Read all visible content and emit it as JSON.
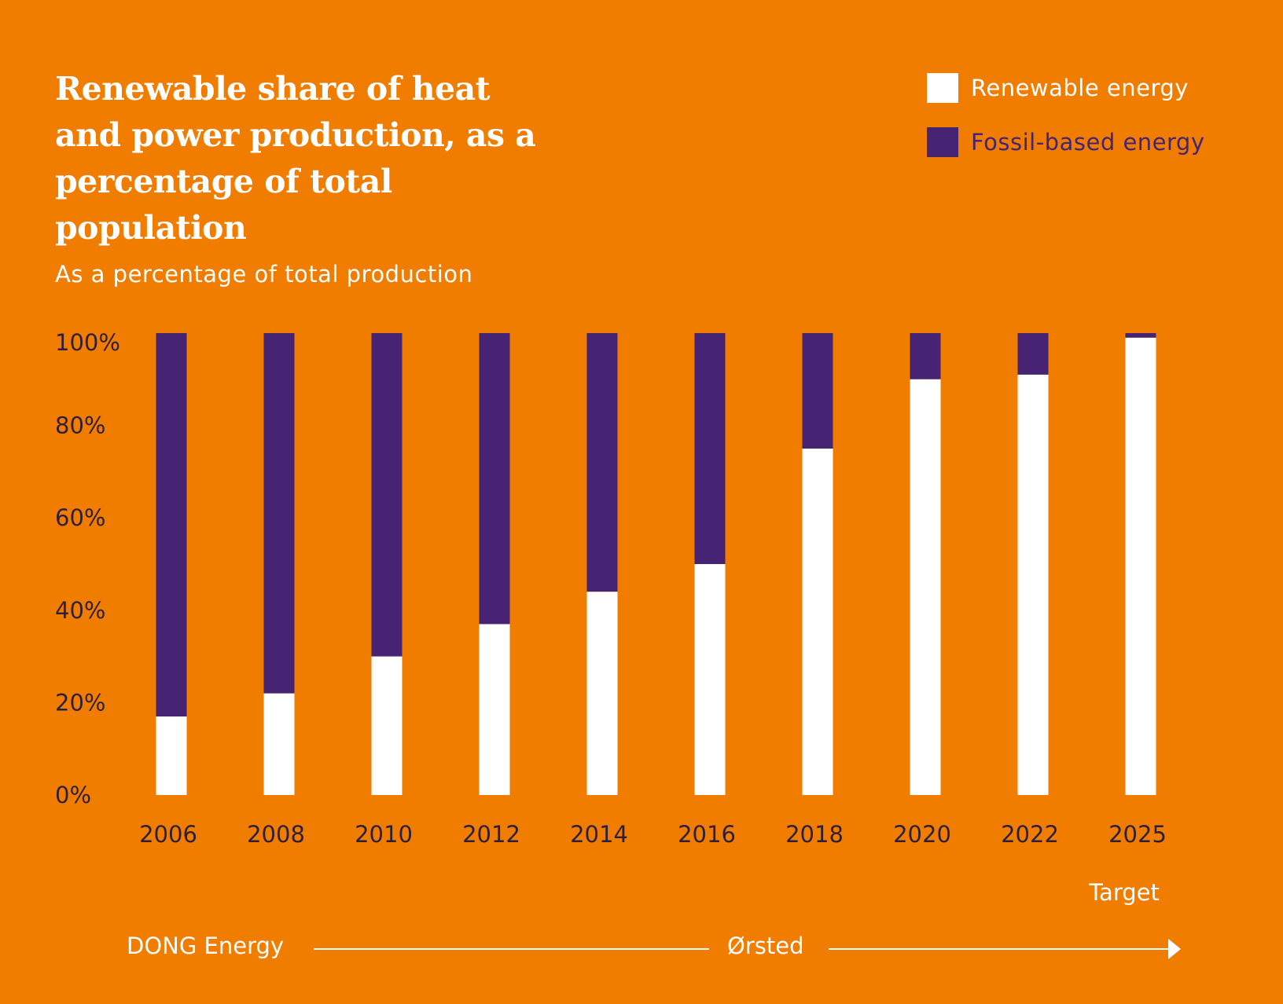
{
  "title": {
    "line1": "Renewable share of heat",
    "line2": "and power production, as a",
    "line3": "percentage of total population"
  },
  "subtitle": "As a percentage of total production",
  "legend": [
    {
      "label": "Renewable energy",
      "color": "#ffffff",
      "text_color": "#ffffff"
    },
    {
      "label": "Fossil-based energy",
      "color": "#472374",
      "text_color": "#472374"
    }
  ],
  "timeline": {
    "start_label": "DONG Energy",
    "middle_label": "Ørsted",
    "target_label": "Target"
  },
  "colors": {
    "background": "#f07d00",
    "renewable": "#ffffff",
    "fossil": "#472374",
    "tick_text": "#2e1f38"
  },
  "chart_data": {
    "type": "bar",
    "stacked": true,
    "title": "Renewable share of heat and power production, as a percentage of total population",
    "ylabel": "As a percentage of total production",
    "xlabel": "",
    "categories": [
      "2006",
      "2008",
      "2010",
      "2012",
      "2014",
      "2016",
      "2018",
      "2020",
      "2022",
      "2025"
    ],
    "series": [
      {
        "name": "Renewable energy",
        "values": [
          17,
          22,
          30,
          37,
          44,
          50,
          75,
          90,
          91,
          99
        ]
      },
      {
        "name": "Fossil-based energy",
        "values": [
          83,
          78,
          70,
          63,
          56,
          50,
          25,
          10,
          9,
          1
        ]
      }
    ],
    "ylim": [
      0,
      100
    ],
    "yticks": [
      0,
      20,
      40,
      60,
      80,
      100
    ],
    "ytick_labels": [
      "0%",
      "20%",
      "40%",
      "60%",
      "80%",
      "100%"
    ],
    "grid": false,
    "legend_position": "top-right"
  }
}
